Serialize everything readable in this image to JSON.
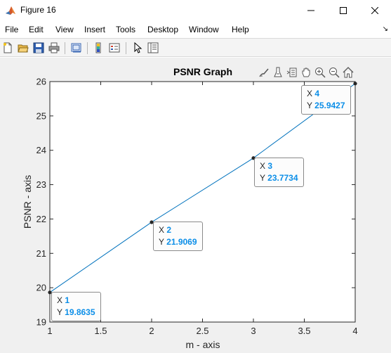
{
  "window": {
    "title": "Figure 16",
    "buttons": {
      "minimize": "—",
      "maximize": "☐",
      "close": "✕"
    }
  },
  "menu": {
    "items": [
      "File",
      "Edit",
      "View",
      "Insert",
      "Tools",
      "Desktop",
      "Window",
      "Help"
    ],
    "overflow_arrow": "↘"
  },
  "toolbar": {
    "icons": [
      "new-figure-icon",
      "open-file-icon",
      "save-icon",
      "print-icon",
      "link-plot-icon",
      "insert-colorbar-icon",
      "insert-legend-icon",
      "edit-plot-icon",
      "property-inspector-icon"
    ]
  },
  "axes_toolbar": {
    "icons": [
      "brush-icon",
      "data-tips-icon",
      "rotate-icon",
      "pan-icon",
      "zoom-in-icon",
      "zoom-out-icon",
      "home-icon"
    ]
  },
  "chart_data": {
    "type": "line",
    "title": "PSNR Graph",
    "xlabel": "m - axis",
    "ylabel": "PSNR - axis",
    "x": [
      1,
      2,
      3,
      4
    ],
    "y": [
      19.8635,
      21.9069,
      23.7734,
      25.9427
    ],
    "xlim": [
      1,
      4
    ],
    "ylim": [
      19,
      26
    ],
    "xticks": [
      "1",
      "1.5",
      "2",
      "2.5",
      "3",
      "3.5",
      "4"
    ],
    "yticks": [
      "19",
      "20",
      "21",
      "22",
      "23",
      "24",
      "25",
      "26"
    ],
    "grid": false,
    "line_color": "#0072bd",
    "datatips": [
      {
        "x_label": "X",
        "x_value": "1",
        "y_label": "Y",
        "y_value": "19.8635"
      },
      {
        "x_label": "X",
        "x_value": "2",
        "y_label": "Y",
        "y_value": "21.9069"
      },
      {
        "x_label": "X",
        "x_value": "3",
        "y_label": "Y",
        "y_value": "23.7734"
      },
      {
        "x_label": "X",
        "x_value": "4",
        "y_label": "Y",
        "y_value": "25.9427"
      }
    ]
  }
}
